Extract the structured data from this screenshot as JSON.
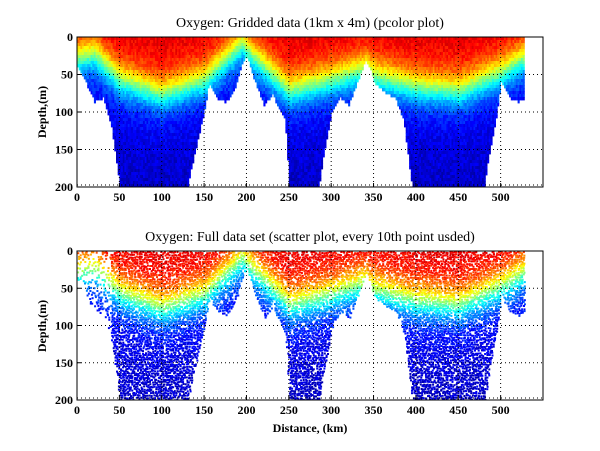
{
  "chart_data": [
    {
      "type": "heatmap",
      "title": "Oxygen: Gridded data (1km x 4m) (pcolor plot)",
      "xlabel": "",
      "ylabel": "Depth,(m)",
      "xlim": [
        0,
        550
      ],
      "ylim": [
        0,
        200
      ],
      "y_reversed": true,
      "grid": true,
      "xticks": [
        0,
        50,
        100,
        150,
        200,
        250,
        300,
        350,
        400,
        450,
        500
      ],
      "yticks": [
        0,
        50,
        100,
        150,
        200
      ],
      "colormap": "jet",
      "bottom_depth_profile": {
        "distance_km": [
          0,
          10,
          20,
          30,
          40,
          45,
          50,
          60,
          100,
          130,
          135,
          150,
          155,
          165,
          175,
          185,
          195,
          200,
          210,
          220,
          230,
          245,
          250,
          260,
          285,
          290,
          300,
          310,
          320,
          330,
          340,
          345,
          350,
          360,
          375,
          385,
          395,
          400,
          480,
          485,
          495,
          500,
          510,
          520,
          527
        ],
        "depth_m": [
          40,
          60,
          85,
          80,
          120,
          160,
          200,
          200,
          200,
          200,
          170,
          95,
          60,
          80,
          85,
          70,
          30,
          25,
          60,
          90,
          75,
          110,
          200,
          200,
          200,
          160,
          100,
          80,
          90,
          60,
          30,
          40,
          60,
          70,
          80,
          110,
          200,
          200,
          200,
          160,
          100,
          60,
          80,
          85,
          80
        ]
      },
      "oxycline_depth_profile": {
        "distance_km": [
          0,
          20,
          50,
          100,
          150,
          195,
          200,
          250,
          300,
          340,
          350,
          400,
          450,
          500,
          527
        ],
        "depth_m": [
          25,
          20,
          55,
          75,
          55,
          5,
          15,
          70,
          55,
          40,
          50,
          65,
          70,
          45,
          25
        ]
      }
    },
    {
      "type": "scatter",
      "title": "Oxygen: Full data set (scatter plot, every 10th point usded)",
      "xlabel": "Distance, (km)",
      "ylabel": "Depth,(m)",
      "xlim": [
        0,
        550
      ],
      "ylim": [
        0,
        200
      ],
      "y_reversed": true,
      "grid": true,
      "xticks": [
        0,
        50,
        100,
        150,
        200,
        250,
        300,
        350,
        400,
        450,
        500
      ],
      "yticks": [
        0,
        50,
        100,
        150,
        200
      ],
      "colormap": "jet",
      "sparse_region_km": [
        0,
        40
      ]
    }
  ]
}
